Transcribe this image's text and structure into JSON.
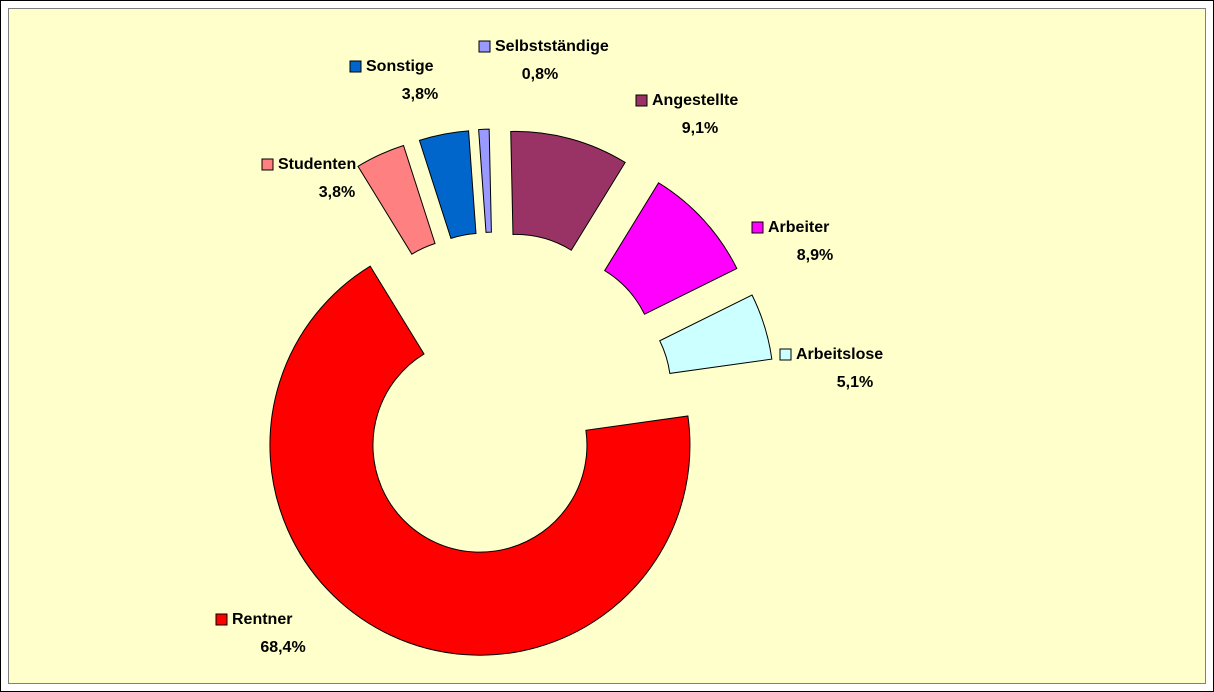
{
  "chart_data": {
    "type": "donut",
    "categories": [
      "Rentner",
      "Studenten",
      "Sonstige",
      "Selbstständige",
      "Angestellte",
      "Arbeiter",
      "Arbeitslose"
    ],
    "values": [
      68.4,
      3.8,
      3.8,
      0.8,
      9.1,
      8.9,
      5.1
    ],
    "value_labels": [
      "68,4%",
      "3,8%",
      "3,8%",
      "0,8%",
      "9,1%",
      "8,9%",
      "5,1%"
    ],
    "colors": [
      "#ff0000",
      "#ff8080",
      "#0066cc",
      "#9999ff",
      "#993366",
      "#ff00ff",
      "#ccffff"
    ]
  }
}
